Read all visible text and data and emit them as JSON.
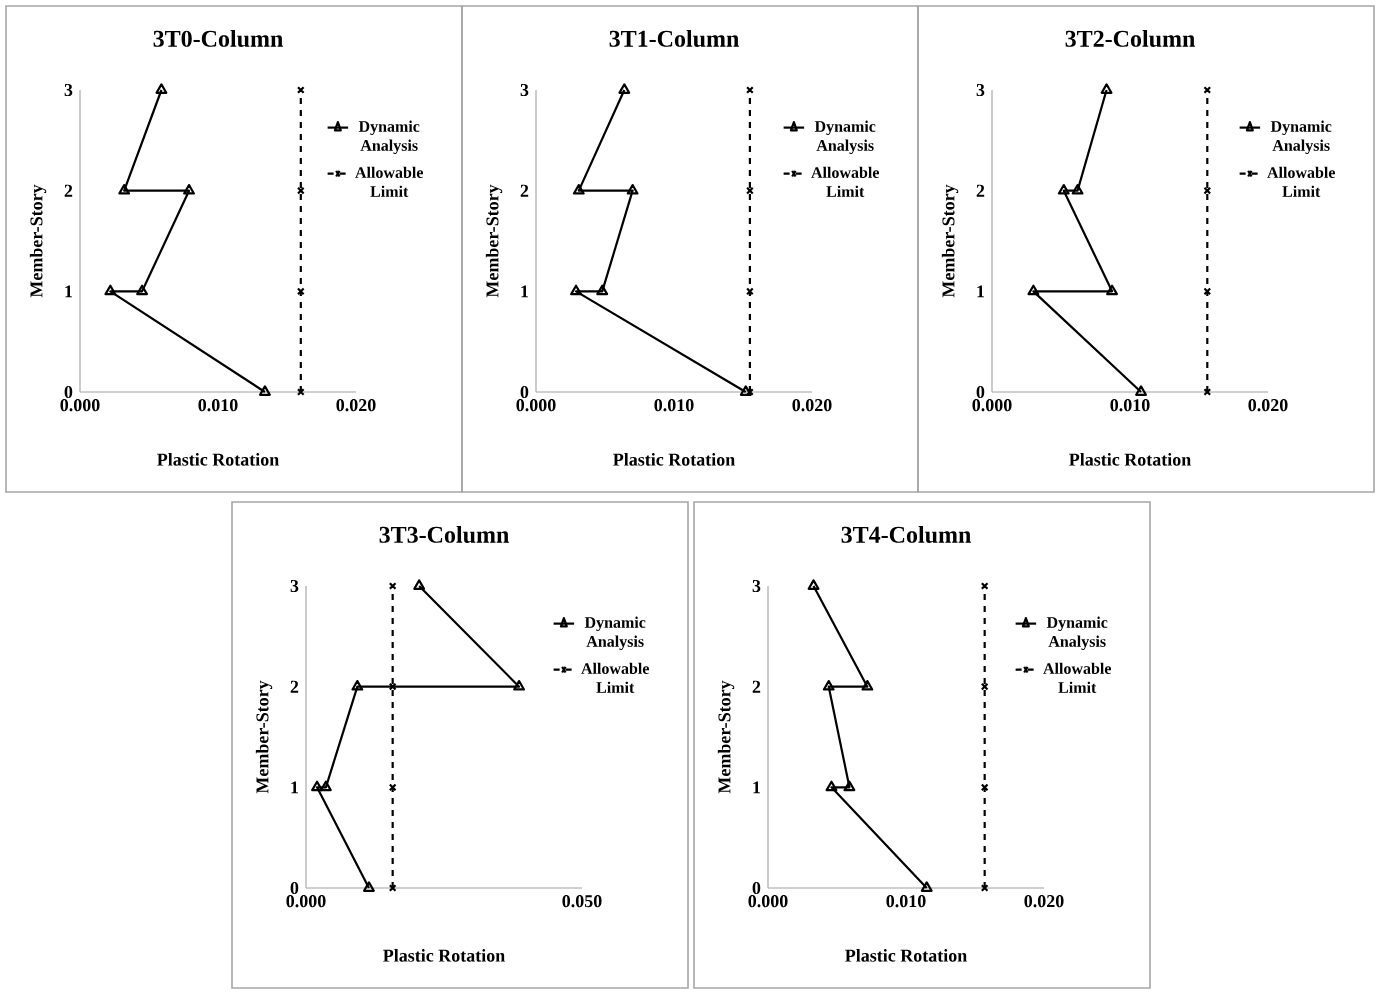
{
  "chart_data": [
    {
      "type": "line",
      "title": "3T0-Column",
      "xlabel": "Plastic Rotation",
      "ylabel": "Member-Story",
      "xlim": [
        0,
        0.02
      ],
      "xticks": [
        {
          "value": 0,
          "label": "0.000"
        },
        {
          "value": 0.01,
          "label": "0.010"
        },
        {
          "value": 0.02,
          "label": "0.020"
        }
      ],
      "ylim": [
        0,
        3
      ],
      "yticks": [
        0,
        1,
        2,
        3
      ],
      "legend": "right",
      "series": [
        {
          "name": "Dynamic Analysis",
          "color": "#000000",
          "marker": "triangle",
          "line_style": "solid",
          "x": [
            0.0134,
            0.0022,
            0.0045,
            0.0079,
            0.0032,
            0.0059
          ],
          "values": [
            0,
            1,
            1,
            2,
            2,
            3
          ]
        },
        {
          "name": "Allowable Limit",
          "color": "#000000",
          "marker": "cross",
          "line_style": "dashed",
          "x": [
            0.016,
            0.016,
            0.016,
            0.016
          ],
          "values": [
            0,
            1,
            2,
            3
          ]
        }
      ]
    },
    {
      "type": "line",
      "title": "3T1-Column",
      "xlabel": "Plastic Rotation",
      "ylabel": "Member-Story",
      "xlim": [
        0,
        0.02
      ],
      "xticks": [
        {
          "value": 0,
          "label": "0.000"
        },
        {
          "value": 0.01,
          "label": "0.010"
        },
        {
          "value": 0.02,
          "label": "0.020"
        }
      ],
      "ylim": [
        0,
        3
      ],
      "yticks": [
        0,
        1,
        2,
        3
      ],
      "legend": "right",
      "series": [
        {
          "name": "Dynamic Analysis",
          "color": "#000000",
          "marker": "triangle",
          "line_style": "solid",
          "x": [
            0.0152,
            0.0029,
            0.0048,
            0.007,
            0.0031,
            0.0064
          ],
          "values": [
            0,
            1,
            1,
            2,
            2,
            3
          ]
        },
        {
          "name": "Allowable Limit",
          "color": "#000000",
          "marker": "cross",
          "line_style": "dashed",
          "x": [
            0.0155,
            0.0155,
            0.0155,
            0.0155
          ],
          "values": [
            0,
            1,
            2,
            3
          ]
        }
      ]
    },
    {
      "type": "line",
      "title": "3T2-Column",
      "xlabel": "Plastic Rotation",
      "ylabel": "Member-Story",
      "xlim": [
        0,
        0.02
      ],
      "xticks": [
        {
          "value": 0,
          "label": "0.000"
        },
        {
          "value": 0.01,
          "label": "0.010"
        },
        {
          "value": 0.02,
          "label": "0.020"
        }
      ],
      "ylim": [
        0,
        3
      ],
      "yticks": [
        0,
        1,
        2,
        3
      ],
      "legend": "right",
      "series": [
        {
          "name": "Dynamic Analysis",
          "color": "#000000",
          "marker": "triangle",
          "line_style": "solid",
          "x": [
            0.0108,
            0.003,
            0.0087,
            0.0052,
            0.0062,
            0.0083
          ],
          "values": [
            0,
            1,
            1,
            2,
            2,
            3
          ]
        },
        {
          "name": "Allowable Limit",
          "color": "#000000",
          "marker": "cross",
          "line_style": "dashed",
          "x": [
            0.0156,
            0.0156,
            0.0156,
            0.0156
          ],
          "values": [
            0,
            1,
            2,
            3
          ]
        }
      ]
    },
    {
      "type": "line",
      "title": "3T3-Column",
      "xlabel": "Plastic Rotation",
      "ylabel": "Member-Story",
      "xlim": [
        0,
        0.05
      ],
      "xticks": [
        {
          "value": 0,
          "label": "0.000"
        },
        {
          "value": 0.05,
          "label": "0.050"
        }
      ],
      "ylim": [
        0,
        3
      ],
      "yticks": [
        0,
        1,
        2,
        3
      ],
      "legend": "right",
      "series": [
        {
          "name": "Dynamic Analysis",
          "color": "#000000",
          "marker": "triangle",
          "line_style": "solid",
          "x": [
            0.0114,
            0.002,
            0.0036,
            0.0093,
            0.0386,
            0.0205
          ],
          "values": [
            0,
            1,
            1,
            2,
            2,
            3
          ]
        },
        {
          "name": "Allowable Limit",
          "color": "#000000",
          "marker": "cross",
          "line_style": "dashed",
          "x": [
            0.0157,
            0.0157,
            0.0157,
            0.0157
          ],
          "values": [
            0,
            1,
            2,
            3
          ]
        }
      ]
    },
    {
      "type": "line",
      "title": "3T4-Column",
      "xlabel": "Plastic Rotation",
      "ylabel": "Member-Story",
      "xlim": [
        0,
        0.02
      ],
      "xticks": [
        {
          "value": 0,
          "label": "0.000"
        },
        {
          "value": 0.01,
          "label": "0.010"
        },
        {
          "value": 0.02,
          "label": "0.020"
        }
      ],
      "ylim": [
        0,
        3
      ],
      "yticks": [
        0,
        1,
        2,
        3
      ],
      "legend": "right",
      "series": [
        {
          "name": "Dynamic Analysis",
          "color": "#000000",
          "marker": "triangle",
          "line_style": "solid",
          "x": [
            0.0115,
            0.0046,
            0.0059,
            0.0044,
            0.0072,
            0.0033
          ],
          "values": [
            0,
            1,
            1,
            2,
            2,
            3
          ]
        },
        {
          "name": "Allowable Limit",
          "color": "#000000",
          "marker": "cross",
          "line_style": "dashed",
          "x": [
            0.0157,
            0.0157,
            0.0157,
            0.0157
          ],
          "values": [
            0,
            1,
            2,
            3
          ]
        }
      ]
    }
  ]
}
